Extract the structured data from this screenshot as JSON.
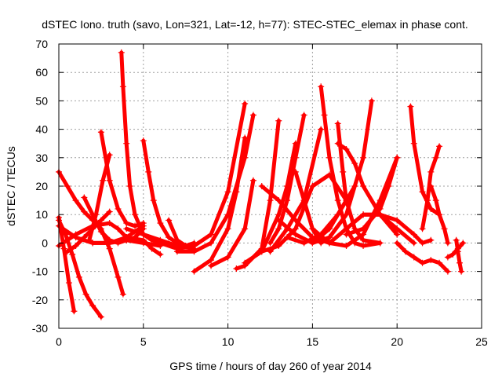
{
  "chart_data": {
    "type": "scatter",
    "title": "dSTEC Iono. truth (savo, Lon=321, Lat=-12, h=77): STEC-STEC_elemax in phase cont.",
    "xlabel": "GPS time / hours of day 260 of year 2014",
    "ylabel": "dSTEC  / TECUs",
    "xlim": [
      0,
      25
    ],
    "ylim": [
      -30,
      70
    ],
    "xticks": [
      0,
      5,
      10,
      15,
      20,
      25
    ],
    "yticks": [
      -30,
      -20,
      -10,
      0,
      10,
      20,
      30,
      40,
      50,
      60,
      70
    ],
    "grid": true,
    "marker": "+",
    "color": "#ff0000",
    "series": [
      {
        "x": [
          0.0,
          0.3,
          0.6,
          0.9
        ],
        "y": [
          9,
          -2,
          -14,
          -24
        ]
      },
      {
        "x": [
          0.0,
          0.5,
          1.0,
          1.5,
          2.0,
          2.5,
          3.0,
          3.5,
          3.8
        ],
        "y": [
          25,
          20,
          15,
          11,
          8,
          5,
          -2,
          -12,
          -18
        ]
      },
      {
        "x": [
          0.0,
          0.4,
          0.8,
          1.2,
          1.6,
          2.0,
          2.5
        ],
        "y": [
          8,
          3,
          -4,
          -12,
          -18,
          -22,
          -26
        ]
      },
      {
        "x": [
          0.0,
          1.0,
          2.0,
          3.0,
          4.0,
          5.0
        ],
        "y": [
          6,
          2,
          0,
          0,
          2,
          6
        ]
      },
      {
        "x": [
          0.0,
          1.0,
          2.0,
          3.0,
          3.5,
          4.0
        ],
        "y": [
          -1,
          3,
          6,
          7,
          5,
          2
        ]
      },
      {
        "x": [
          0.5,
          1.0,
          1.5,
          2.0,
          2.5,
          3.0
        ],
        "y": [
          -3,
          -1,
          2,
          5,
          8,
          11
        ]
      },
      {
        "x": [
          1.5,
          2.0,
          2.5,
          3.0,
          3.5,
          4.0,
          4.5,
          5.0
        ],
        "y": [
          16,
          10,
          4,
          1,
          0,
          1,
          2,
          5
        ]
      },
      {
        "x": [
          1.8,
          2.2,
          2.6,
          3.0
        ],
        "y": [
          1,
          10,
          22,
          31
        ]
      },
      {
        "x": [
          2.5,
          3.0,
          3.5,
          4.0,
          4.5,
          5.0
        ],
        "y": [
          39,
          22,
          12,
          7,
          6,
          7
        ]
      },
      {
        "x": [
          2.0,
          3.0,
          4.0,
          5.0,
          6.0
        ],
        "y": [
          0,
          0,
          1,
          0,
          -1
        ]
      },
      {
        "x": [
          3.7,
          3.8,
          4.0,
          4.2,
          4.5,
          5.0,
          5.5,
          6.0
        ],
        "y": [
          67,
          55,
          35,
          20,
          10,
          3,
          1,
          0
        ]
      },
      {
        "x": [
          4.0,
          5.0,
          6.0,
          7.0,
          8.0
        ],
        "y": [
          5,
          3,
          1,
          -1,
          -2
        ]
      },
      {
        "x": [
          5.0,
          5.3,
          5.6,
          6.0,
          6.5,
          7.0,
          7.5
        ],
        "y": [
          36,
          25,
          15,
          7,
          2,
          0,
          -1
        ]
      },
      {
        "x": [
          4.0,
          5.0,
          5.5,
          6.0
        ],
        "y": [
          2,
          1,
          -2,
          -4
        ]
      },
      {
        "x": [
          6.5,
          7.0,
          7.5,
          8.0
        ],
        "y": [
          8,
          1,
          -1,
          0
        ]
      },
      {
        "x": [
          6.0,
          7.0,
          8.0,
          9.0,
          10.0,
          11.0
        ],
        "y": [
          0,
          -2,
          -1,
          3,
          18,
          49
        ]
      },
      {
        "x": [
          7.0,
          8.0,
          9.0,
          10.0,
          11.0,
          11.5
        ],
        "y": [
          -3,
          -3,
          0,
          10,
          30,
          45
        ]
      },
      {
        "x": [
          8.0,
          9.0,
          10.0,
          10.5,
          11.0
        ],
        "y": [
          -10,
          -6,
          5,
          18,
          37
        ]
      },
      {
        "x": [
          9.0,
          10.0,
          11.0,
          11.5
        ],
        "y": [
          -8,
          -5,
          5,
          22
        ]
      },
      {
        "x": [
          10.5,
          11.0,
          12.0,
          12.5,
          13.0
        ],
        "y": [
          -9,
          -8,
          -2,
          15,
          43
        ]
      },
      {
        "x": [
          11.0,
          12.0,
          13.0,
          13.5,
          14.0
        ],
        "y": [
          -7,
          -3,
          10,
          20,
          35
        ]
      },
      {
        "x": [
          12.5,
          13.0,
          13.5,
          14.0,
          14.5
        ],
        "y": [
          0,
          5,
          15,
          30,
          45
        ]
      },
      {
        "x": [
          12.0,
          13.0,
          14.0,
          15.0,
          16.0
        ],
        "y": [
          20,
          15,
          8,
          2,
          0
        ]
      },
      {
        "x": [
          12.5,
          13.5,
          14.5,
          15.5
        ],
        "y": [
          -3,
          5,
          15,
          40
        ]
      },
      {
        "x": [
          12.0,
          13.0,
          14.0,
          15.0,
          16.0,
          17.0
        ],
        "y": [
          -3,
          -1,
          5,
          20,
          24,
          15
        ]
      },
      {
        "x": [
          13.0,
          14.0,
          15.0,
          16.0,
          17.0
        ],
        "y": [
          8,
          3,
          0,
          5,
          15
        ]
      },
      {
        "x": [
          14.0,
          14.5,
          15.0,
          15.5,
          16.0
        ],
        "y": [
          25,
          15,
          5,
          0,
          2
        ]
      },
      {
        "x": [
          13.5,
          14.5,
          15.5,
          16.5,
          17.5
        ],
        "y": [
          2,
          0,
          3,
          10,
          20
        ]
      },
      {
        "x": [
          15.0,
          16.0,
          17.0,
          18.0,
          18.5
        ],
        "y": [
          0,
          2,
          10,
          30,
          50
        ]
      },
      {
        "x": [
          15.5,
          15.7,
          16.0,
          16.5,
          17.0,
          17.5,
          18.0,
          19.0
        ],
        "y": [
          55,
          45,
          30,
          15,
          5,
          0,
          -1,
          0
        ]
      },
      {
        "x": [
          15.0,
          16.0,
          17.0,
          18.0,
          19.0,
          20.0
        ],
        "y": [
          5,
          0,
          -1,
          3,
          15,
          30
        ]
      },
      {
        "x": [
          16.5,
          16.8,
          17.0,
          17.5,
          18.0,
          19.0
        ],
        "y": [
          42,
          25,
          15,
          5,
          1,
          0
        ]
      },
      {
        "x": [
          16.5,
          17.0,
          17.5,
          18.0,
          19.0,
          20.0
        ],
        "y": [
          35,
          33,
          28,
          20,
          10,
          3
        ]
      },
      {
        "x": [
          16.0,
          17.0,
          18.0,
          19.0,
          20.0,
          21.0
        ],
        "y": [
          0,
          5,
          10,
          10,
          5,
          0
        ]
      },
      {
        "x": [
          17.0,
          18.0,
          19.0,
          19.5,
          20.0
        ],
        "y": [
          3,
          5,
          12,
          20,
          30
        ]
      },
      {
        "x": [
          18.0,
          19.0,
          20.0,
          21.0,
          21.5,
          22.0
        ],
        "y": [
          10,
          10,
          8,
          3,
          0,
          1
        ]
      },
      {
        "x": [
          20.0,
          20.5,
          21.0,
          21.5,
          22.0,
          22.5,
          23.0
        ],
        "y": [
          0,
          -3,
          -5,
          -7,
          -6,
          -7,
          -10
        ]
      },
      {
        "x": [
          20.8,
          21.0,
          21.5,
          22.0,
          22.5
        ],
        "y": [
          48,
          35,
          18,
          12,
          10
        ]
      },
      {
        "x": [
          21.5,
          21.8,
          22.0,
          22.3,
          22.5
        ],
        "y": [
          5,
          15,
          25,
          30,
          34
        ]
      },
      {
        "x": [
          22.0,
          22.3,
          22.5,
          22.8,
          23.0
        ],
        "y": [
          20,
          15,
          10,
          5,
          0
        ]
      },
      {
        "x": [
          23.0,
          23.3,
          23.6,
          23.9
        ],
        "y": [
          -5,
          -4,
          -2,
          0
        ]
      },
      {
        "x": [
          23.5,
          23.6,
          23.7,
          23.8
        ],
        "y": [
          1,
          -3,
          -7,
          -10
        ]
      }
    ]
  }
}
